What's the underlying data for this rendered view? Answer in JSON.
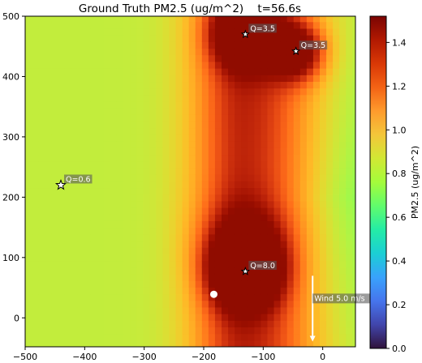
{
  "chart_data": {
    "type": "heatmap",
    "title": "Ground Truth PM2.5 (ug/m^2)    t=56.6s",
    "xlim": [
      -500,
      55
    ],
    "ylim": [
      -48,
      500
    ],
    "x_ticks": [
      -500,
      -400,
      -300,
      -200,
      -100,
      0
    ],
    "x_tick_labels": [
      "−500",
      "−400",
      "−300",
      "−200",
      "−100",
      "0"
    ],
    "y_ticks": [
      0,
      100,
      200,
      300,
      400,
      500
    ],
    "y_tick_labels": [
      "0",
      "100",
      "200",
      "300",
      "400",
      "500"
    ],
    "colorbar": {
      "label": "PM2.5 (ug/m^2)",
      "range": [
        0.0,
        1.52
      ],
      "ticks": [
        0.0,
        0.2,
        0.4,
        0.6,
        0.8,
        1.0,
        1.2,
        1.4
      ],
      "tick_labels": [
        "0.0",
        "0.2",
        "0.4",
        "0.6",
        "0.8",
        "1.0",
        "1.2",
        "1.4"
      ],
      "colormap": "turbo"
    },
    "background_level": 0.85,
    "sources": [
      {
        "x": -440,
        "y": 220,
        "label": "Q=0.6",
        "size": "large"
      },
      {
        "x": -130,
        "y": 470,
        "label": "Q=3.5",
        "size": "small"
      },
      {
        "x": -45,
        "y": 442,
        "label": "Q=3.5",
        "size": "small"
      },
      {
        "x": -130,
        "y": 77,
        "label": "Q=8.0",
        "size": "small"
      }
    ],
    "sensor": {
      "x": -183,
      "y": 39
    },
    "wind": {
      "label": "Wind 5.0 m/s",
      "x": -17,
      "y_start": 16,
      "y_end": -38,
      "direction": "down"
    }
  }
}
